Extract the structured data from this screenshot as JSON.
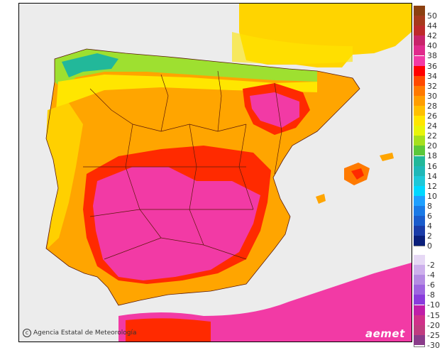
{
  "credit": "Agencia Estatal de Meteorología",
  "logo_text": "aemet",
  "legend": {
    "positive": [
      {
        "label": "50",
        "color": "#8b4010"
      },
      {
        "label": "44",
        "color": "#a63a1c"
      },
      {
        "label": "42",
        "color": "#bd2a2a"
      },
      {
        "label": "40",
        "color": "#c8246a"
      },
      {
        "label": "38",
        "color": "#e02b8c"
      },
      {
        "label": "36",
        "color": "#f23aa5"
      },
      {
        "label": "34",
        "color": "#ff0000"
      },
      {
        "label": "32",
        "color": "#ff4a00"
      },
      {
        "label": "30",
        "color": "#ff7a00"
      },
      {
        "label": "28",
        "color": "#ff9e00"
      },
      {
        "label": "26",
        "color": "#ffc000"
      },
      {
        "label": "24",
        "color": "#ffe600"
      },
      {
        "label": "22",
        "color": "#e8f50a"
      },
      {
        "label": "20",
        "color": "#a6e01e"
      },
      {
        "label": "18",
        "color": "#5cc83a"
      },
      {
        "label": "16",
        "color": "#22b89a"
      },
      {
        "label": "14",
        "color": "#1fb8b8"
      },
      {
        "label": "12",
        "color": "#1ec8d8"
      },
      {
        "label": "10",
        "color": "#00d8ff"
      },
      {
        "label": "8",
        "color": "#1ea0ff"
      },
      {
        "label": "6",
        "color": "#1a7ae6"
      },
      {
        "label": "4",
        "color": "#1a5ccc"
      },
      {
        "label": "2",
        "color": "#1a3ca8"
      },
      {
        "label": "0",
        "color": "#0a1f7a"
      }
    ],
    "negative": [
      {
        "label": "-2",
        "color": "#e6d8f5"
      },
      {
        "label": "-4",
        "color": "#cdb0ec"
      },
      {
        "label": "-6",
        "color": "#b48ce3"
      },
      {
        "label": "-8",
        "color": "#9e66e0"
      },
      {
        "label": "-10",
        "color": "#8a3cdc"
      },
      {
        "label": "-15",
        "color": "#c01ea8"
      },
      {
        "label": "-20",
        "color": "#d0308a"
      },
      {
        "label": "-25",
        "color": "#c03c80"
      },
      {
        "label": "-30",
        "color": "#8a3c8a"
      }
    ]
  }
}
